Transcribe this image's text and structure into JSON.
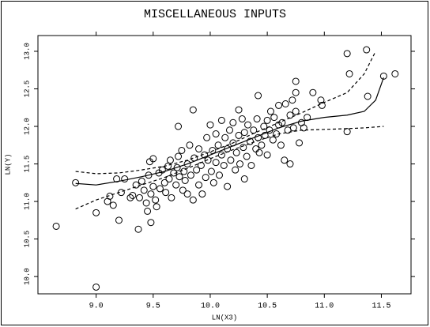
{
  "chart_data": {
    "type": "scatter",
    "title": "MISCELLANEOUS INPUTS",
    "x_label": "LN(X3)",
    "y_label": "LN(Y)",
    "xlim": [
      8.49,
      11.76
    ],
    "ylim": [
      9.77,
      13.21
    ],
    "xticks": [
      {
        "value": 9,
        "label": "9.0"
      },
      9.5,
      {
        "value": 10,
        "label": "10.0"
      },
      10.5,
      {
        "value": 11,
        "label": "11.0"
      },
      11.5
    ],
    "yticks": [
      {
        "value": 10,
        "label": "10.0"
      },
      10.5,
      {
        "value": 11,
        "label": "11.0"
      },
      11.5,
      {
        "value": 12,
        "label": "12.0"
      },
      12.5,
      {
        "value": 13,
        "label": "13.0"
      }
    ],
    "color": "#000000",
    "points": {
      "x": [
        8.65,
        8.82,
        9.0,
        9.0,
        9.18,
        9.2,
        9.3,
        9.37,
        9.45,
        9.48,
        9.47,
        9.5,
        9.72,
        9.85,
        10.25,
        10.42,
        10.75,
        10.75,
        10.9,
        10.97,
        10.98,
        11.2,
        11.2,
        11.22,
        11.37,
        11.38,
        11.52,
        11.62,
        9.1,
        9.12,
        9.15,
        9.22,
        9.25,
        9.32,
        9.35,
        9.38,
        9.4,
        9.42,
        9.44,
        9.46,
        9.48,
        9.5,
        9.52,
        9.53,
        9.55,
        9.56,
        9.58,
        9.6,
        9.61,
        9.63,
        9.64,
        9.65,
        9.66,
        9.68,
        9.7,
        9.71,
        9.72,
        9.73,
        9.75,
        9.76,
        9.77,
        9.78,
        9.8,
        9.8,
        9.82,
        9.83,
        9.85,
        9.86,
        9.88,
        9.9,
        9.9,
        9.92,
        9.93,
        9.95,
        9.96,
        9.97,
        9.98,
        10.0,
        10.01,
        10.02,
        10.03,
        10.05,
        10.05,
        10.07,
        10.08,
        10.1,
        10.1,
        10.12,
        10.13,
        10.15,
        10.15,
        10.17,
        10.18,
        10.2,
        10.2,
        10.22,
        10.23,
        10.25,
        10.26,
        10.28,
        10.29,
        10.3,
        10.3,
        10.32,
        10.33,
        10.35,
        10.36,
        10.38,
        10.4,
        10.41,
        10.42,
        10.43,
        10.45,
        10.47,
        10.48,
        10.5,
        10.5,
        10.52,
        10.53,
        10.55,
        10.56,
        10.58,
        10.6,
        10.6,
        10.62,
        10.63,
        10.65,
        10.66,
        10.68,
        10.7,
        10.7,
        10.72,
        10.73,
        10.75,
        10.78,
        10.8,
        10.82,
        10.85
      ],
      "y": [
        10.67,
        11.25,
        9.86,
        10.85,
        11.3,
        10.75,
        11.05,
        10.63,
        10.87,
        10.72,
        11.53,
        11.57,
        12.0,
        12.22,
        12.22,
        12.41,
        12.6,
        12.45,
        12.45,
        12.35,
        12.28,
        12.97,
        11.93,
        12.7,
        13.02,
        12.4,
        12.67,
        12.7,
        11.0,
        11.07,
        10.95,
        11.12,
        11.3,
        11.08,
        11.22,
        11.05,
        11.27,
        11.15,
        10.98,
        11.35,
        11.1,
        11.2,
        11.02,
        10.93,
        11.38,
        11.17,
        11.42,
        11.25,
        11.12,
        11.47,
        11.3,
        11.55,
        11.05,
        11.38,
        11.22,
        11.45,
        11.6,
        11.33,
        11.68,
        11.15,
        11.4,
        11.28,
        11.5,
        11.1,
        11.75,
        11.35,
        11.02,
        11.58,
        11.42,
        11.22,
        11.7,
        11.48,
        11.1,
        11.62,
        11.32,
        11.85,
        11.55,
        12.02,
        11.4,
        11.68,
        11.25,
        11.9,
        11.52,
        11.75,
        11.35,
        12.08,
        11.62,
        11.48,
        11.85,
        11.7,
        11.2,
        11.95,
        11.55,
        11.78,
        12.05,
        11.42,
        11.65,
        11.88,
        11.5,
        12.1,
        11.72,
        11.3,
        11.92,
        11.6,
        12.02,
        11.8,
        11.48,
        11.95,
        11.7,
        12.1,
        11.85,
        11.65,
        11.75,
        12.0,
        11.88,
        12.08,
        11.62,
        11.95,
        12.2,
        11.82,
        12.12,
        11.9,
        12.02,
        12.28,
        11.75,
        12.05,
        11.55,
        12.3,
        11.95,
        12.15,
        11.5,
        12.35,
        11.98,
        12.2,
        11.78,
        12.05,
        11.98,
        12.12
      ]
    },
    "lines": [
      {
        "dash": false,
        "x": [
          8.82,
          9.0,
          9.2,
          9.4,
          9.6,
          9.8,
          10.0,
          10.2,
          10.4,
          10.6,
          10.8,
          11.0,
          11.2,
          11.35,
          11.45,
          11.52
        ],
        "y": [
          11.24,
          11.22,
          11.27,
          11.33,
          11.4,
          11.5,
          11.62,
          11.74,
          11.86,
          11.98,
          12.07,
          12.12,
          12.15,
          12.2,
          12.35,
          12.65
        ]
      },
      {
        "dash": true,
        "x": [
          8.82,
          9.0,
          9.2,
          9.4,
          9.6,
          9.8,
          10.0,
          10.2,
          10.4,
          10.6,
          10.8,
          11.0,
          11.2,
          11.35,
          11.45
        ],
        "y": [
          11.4,
          11.37,
          11.38,
          11.42,
          11.47,
          11.55,
          11.66,
          11.78,
          11.92,
          12.05,
          12.18,
          12.32,
          12.45,
          12.7,
          13.0
        ]
      },
      {
        "dash": true,
        "x": [
          8.82,
          9.0,
          9.2,
          9.4,
          9.6,
          9.8,
          10.0,
          10.2,
          10.4,
          10.6,
          10.8,
          11.0,
          11.2,
          11.35,
          11.52
        ],
        "y": [
          10.9,
          11.02,
          11.12,
          11.22,
          11.32,
          11.44,
          11.57,
          11.69,
          11.8,
          11.9,
          11.95,
          11.96,
          11.97,
          11.98,
          12.0
        ]
      }
    ]
  }
}
